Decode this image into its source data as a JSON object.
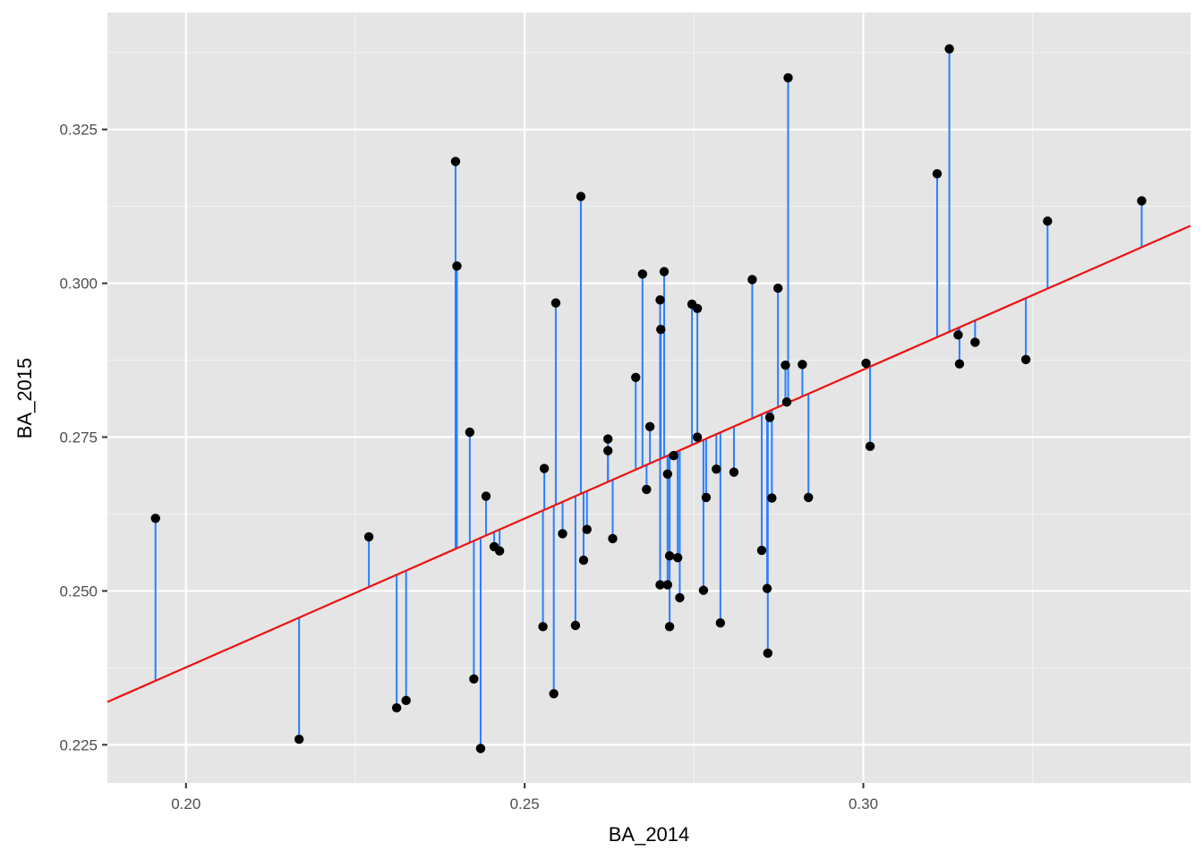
{
  "chart_data": {
    "type": "scatter",
    "xlabel": "BA_2014",
    "ylabel": "BA_2015",
    "xlim": [
      0.1884,
      0.3483
    ],
    "ylim": [
      0.2188,
      0.344
    ],
    "x_ticks": [
      0.2,
      0.25,
      0.3
    ],
    "x_tick_labels": [
      "0.20",
      "0.25",
      "0.30"
    ],
    "y_ticks": [
      0.225,
      0.25,
      0.275,
      0.3,
      0.325
    ],
    "y_tick_labels": [
      "0.225",
      "0.250",
      "0.275",
      "0.300",
      "0.325"
    ],
    "grid": true,
    "regression_line": {
      "color": "#ee1111",
      "intercept": 0.1408,
      "slope": 0.4839
    },
    "residual_segments_color": "#2a7fff",
    "point_color": "#000000",
    "points": [
      [
        0.1955,
        0.2618
      ],
      [
        0.2167,
        0.2259
      ],
      [
        0.227,
        0.2588
      ],
      [
        0.2311,
        0.231
      ],
      [
        0.2325,
        0.2322
      ],
      [
        0.2398,
        0.3198
      ],
      [
        0.24,
        0.3028
      ],
      [
        0.2419,
        0.2758
      ],
      [
        0.2425,
        0.2357
      ],
      [
        0.2435,
        0.2244
      ],
      [
        0.2443,
        0.2654
      ],
      [
        0.2455,
        0.2572
      ],
      [
        0.2463,
        0.2565
      ],
      [
        0.2527,
        0.2442
      ],
      [
        0.2529,
        0.2699
      ],
      [
        0.2543,
        0.2333
      ],
      [
        0.2546,
        0.2968
      ],
      [
        0.2556,
        0.2593
      ],
      [
        0.2575,
        0.2444
      ],
      [
        0.2583,
        0.3141
      ],
      [
        0.2587,
        0.255
      ],
      [
        0.2592,
        0.26
      ],
      [
        0.2623,
        0.2747
      ],
      [
        0.2623,
        0.2728
      ],
      [
        0.263,
        0.2585
      ],
      [
        0.2664,
        0.2847
      ],
      [
        0.2674,
        0.3015
      ],
      [
        0.268,
        0.2665
      ],
      [
        0.2685,
        0.2767
      ],
      [
        0.27,
        0.2973
      ],
      [
        0.2701,
        0.2925
      ],
      [
        0.27,
        0.251
      ],
      [
        0.2706,
        0.3019
      ],
      [
        0.2711,
        0.269
      ],
      [
        0.2711,
        0.251
      ],
      [
        0.2714,
        0.2442
      ],
      [
        0.2714,
        0.2557
      ],
      [
        0.272,
        0.272
      ],
      [
        0.2726,
        0.2554
      ],
      [
        0.2729,
        0.2489
      ],
      [
        0.2747,
        0.2966
      ],
      [
        0.2755,
        0.2959
      ],
      [
        0.2755,
        0.275
      ],
      [
        0.2764,
        0.2501
      ],
      [
        0.2768,
        0.2652
      ],
      [
        0.2783,
        0.2698
      ],
      [
        0.2789,
        0.2448
      ],
      [
        0.2809,
        0.2693
      ],
      [
        0.2836,
        0.3006
      ],
      [
        0.285,
        0.2566
      ],
      [
        0.2858,
        0.2504
      ],
      [
        0.2859,
        0.2399
      ],
      [
        0.2862,
        0.2782
      ],
      [
        0.2865,
        0.2651
      ],
      [
        0.2874,
        0.2992
      ],
      [
        0.2885,
        0.2867
      ],
      [
        0.2887,
        0.2807
      ],
      [
        0.2889,
        0.3334
      ],
      [
        0.291,
        0.2868
      ],
      [
        0.2919,
        0.2652
      ],
      [
        0.3004,
        0.287
      ],
      [
        0.301,
        0.2735
      ],
      [
        0.3109,
        0.3178
      ],
      [
        0.3127,
        0.3381
      ],
      [
        0.314,
        0.2916
      ],
      [
        0.3142,
        0.2869
      ],
      [
        0.3165,
        0.2904
      ],
      [
        0.324,
        0.2876
      ],
      [
        0.3272,
        0.3101
      ],
      [
        0.3411,
        0.3134
      ]
    ]
  }
}
